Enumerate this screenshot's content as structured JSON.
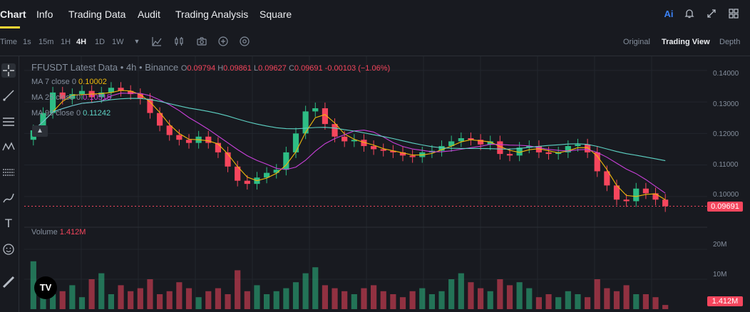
{
  "nav": {
    "tabs": [
      {
        "label": "Chart",
        "active": true
      },
      {
        "label": "Info"
      },
      {
        "label": "Trading Data"
      },
      {
        "label": "Audit"
      },
      {
        "label": "Trading Analysis"
      },
      {
        "label": "Square"
      }
    ],
    "ai_label": "Ai",
    "icons": [
      "ai-icon",
      "bell-icon",
      "expand-icon",
      "grid-icon"
    ]
  },
  "toolbar": {
    "time_label": "Time",
    "intervals": [
      "1s",
      "15m",
      "1H",
      "4H",
      "1D",
      "1W"
    ],
    "active_interval": "4H",
    "views": [
      "Original",
      "Trading View",
      "Depth"
    ],
    "active_view": "Trading View",
    "icons": [
      "dropdown-icon",
      "indicator-icon",
      "candle-type-icon",
      "camera-icon",
      "add-icon",
      "settings-icon"
    ]
  },
  "legend": {
    "symbol": "FFUSDT Latest Data",
    "interval": "4h",
    "exchange": "Binance",
    "o_label": "O",
    "o": "0.09794",
    "h_label": "H",
    "h": "0.09861",
    "l_label": "L",
    "l": "0.09627",
    "c_label": "C",
    "c": "0.09691",
    "change": "-0.00103 (−1.06%)",
    "ma7_label": "MA 7 close 0",
    "ma7": "0.10002",
    "ma25_label": "MA 25 close 0",
    "ma25": "0.10515",
    "ma99_label": "MA 99 close 0",
    "ma99": "0.11242",
    "volume_label": "Volume",
    "volume": "1.412M"
  },
  "colors": {
    "up": "#2ebd85",
    "down": "#f6465d",
    "ma7": "#f0b90b",
    "ma25": "#c940d9",
    "ma99": "#5ed3c5",
    "accent": "#fcd535"
  },
  "price_axis": [
    "0.14000",
    "0.13000",
    "0.12000",
    "0.11000",
    "0.10000"
  ],
  "price_tag": "0.09691",
  "volume_axis": [
    "20M",
    "10M"
  ],
  "volume_tag": "1.412M",
  "chart_data": {
    "type": "candlestick",
    "price_range": [
      0.0925,
      0.1445
    ],
    "volume_range": [
      0,
      25
    ],
    "volume_unit": "M",
    "series_close": [
      0.121,
      0.1265,
      0.133,
      0.131,
      0.1325,
      0.1335,
      0.1315,
      0.133,
      0.1345,
      0.1335,
      0.1325,
      0.131,
      0.1265,
      0.1225,
      0.1195,
      0.118,
      0.117,
      0.119,
      0.117,
      0.114,
      0.1095,
      0.105,
      0.104,
      0.106,
      0.1075,
      0.1085,
      0.114,
      0.12,
      0.127,
      0.128,
      0.123,
      0.119,
      0.1175,
      0.118,
      0.116,
      0.115,
      0.1145,
      0.114,
      0.113,
      0.1125,
      0.114,
      0.1145,
      0.116,
      0.1175,
      0.1185,
      0.118,
      0.1165,
      0.1175,
      0.1135,
      0.113,
      0.1155,
      0.116,
      0.114,
      0.1135,
      0.114,
      0.116,
      0.1165,
      0.114,
      0.108,
      0.1035,
      0.099,
      0.0985,
      0.1025,
      0.101,
      0.099,
      0.0969
    ],
    "volume": [
      16,
      7,
      5,
      6,
      8,
      4,
      10,
      12,
      5,
      8,
      6,
      7,
      10,
      5,
      6,
      9,
      7,
      4,
      6,
      7,
      5,
      13,
      6,
      8,
      5,
      6,
      7,
      9,
      12,
      14,
      8,
      7,
      6,
      5,
      7,
      8,
      6,
      5,
      4,
      6,
      7,
      5,
      6,
      10,
      12,
      9,
      7,
      6,
      10,
      8,
      9,
      7,
      4,
      5,
      4,
      6,
      5,
      4,
      10,
      7,
      6,
      8,
      5,
      5,
      4,
      1.4
    ]
  }
}
